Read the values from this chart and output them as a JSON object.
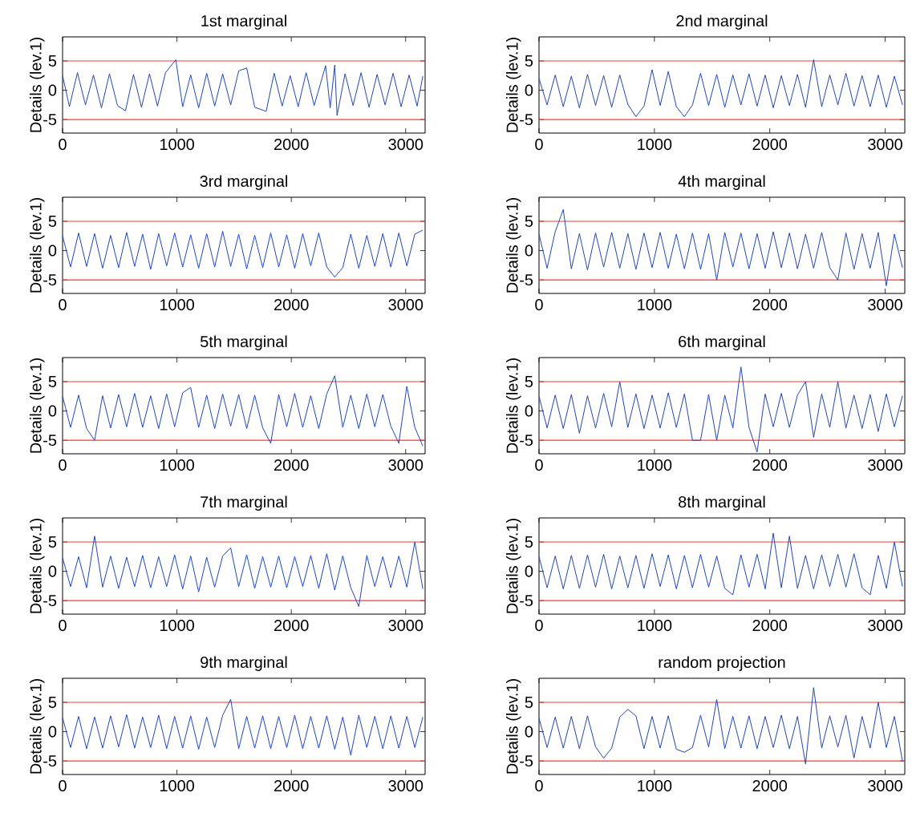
{
  "chart_data": [
    {
      "type": "line",
      "title": "1st marginal",
      "ylabel": "Details (lev.1)",
      "xlim": [
        0,
        3170
      ],
      "ylim": [
        -7.3,
        9.1
      ],
      "xticks": [
        0,
        1000,
        2000,
        3000
      ],
      "yticks": [
        -5,
        0,
        5
      ],
      "ref_lines": [
        {
          "axis": "y",
          "value": 5,
          "color": "#e8413a"
        },
        {
          "axis": "y",
          "value": -5,
          "color": "#e8413a"
        }
      ],
      "series": [
        {
          "color": "#1f45b0",
          "x": [
            0,
            60,
            130,
            200,
            270,
            340,
            410,
            480,
            550,
            620,
            690,
            760,
            830,
            900,
            990,
            1050,
            1120,
            1190,
            1260,
            1330,
            1400,
            1470,
            1540,
            1610,
            1680,
            1780,
            1850,
            1920,
            1990,
            2060,
            2130,
            2200,
            2300,
            2340,
            2380,
            2400,
            2470,
            2540,
            2610,
            2680,
            2750,
            2820,
            2890,
            2960,
            3030,
            3100,
            3150
          ],
          "values": [
            2.5,
            -2.8,
            3.0,
            -2.5,
            2.6,
            -3.0,
            2.8,
            -2.6,
            -3.5,
            2.7,
            -2.9,
            2.8,
            -2.7,
            3.0,
            5.2,
            -2.8,
            2.6,
            -3.0,
            2.9,
            -2.7,
            2.8,
            -2.5,
            3.3,
            3.8,
            -2.9,
            -3.6,
            2.9,
            -2.7,
            2.5,
            -2.8,
            3.0,
            -2.6,
            4.2,
            -3.0,
            4.3,
            -4.3,
            2.8,
            -2.6,
            3.0,
            -2.9,
            2.7,
            -2.5,
            2.9,
            -2.8,
            2.6,
            -2.7,
            2.4
          ]
        }
      ]
    },
    {
      "type": "line",
      "title": "2nd marginal",
      "ylabel": "Details (lev.1)",
      "xlim": [
        0,
        3170
      ],
      "ylim": [
        -7.3,
        9.1
      ],
      "xticks": [
        0,
        1000,
        2000,
        3000
      ],
      "yticks": [
        -5,
        0,
        5
      ],
      "ref_lines": [
        {
          "axis": "y",
          "value": 5,
          "color": "#e8413a"
        },
        {
          "axis": "y",
          "value": -5,
          "color": "#e8413a"
        }
      ],
      "series": [
        {
          "color": "#1f45b0",
          "x": [
            0,
            70,
            140,
            210,
            280,
            350,
            420,
            490,
            560,
            630,
            700,
            770,
            840,
            910,
            980,
            1050,
            1120,
            1190,
            1260,
            1330,
            1400,
            1470,
            1540,
            1610,
            1680,
            1750,
            1820,
            1890,
            1960,
            2030,
            2100,
            2170,
            2240,
            2310,
            2380,
            2450,
            2520,
            2590,
            2660,
            2730,
            2800,
            2870,
            2940,
            3010,
            3080,
            3150
          ],
          "values": [
            2.0,
            -2.5,
            2.6,
            -2.8,
            2.4,
            -3.0,
            2.7,
            -2.6,
            2.5,
            -2.9,
            2.6,
            -2.4,
            -4.5,
            -2.7,
            3.5,
            -2.6,
            3.2,
            -2.8,
            -4.5,
            -2.5,
            2.9,
            -2.6,
            2.7,
            -2.9,
            2.6,
            -2.5,
            2.8,
            -2.7,
            2.6,
            -3.0,
            2.5,
            -2.6,
            2.7,
            -2.9,
            5.2,
            -2.8,
            2.6,
            -2.5,
            2.9,
            -2.7,
            2.5,
            -2.8,
            2.6,
            -2.9,
            2.4,
            -2.5
          ]
        }
      ]
    },
    {
      "type": "line",
      "title": "3rd marginal",
      "ylabel": "Details (lev.1)",
      "xlim": [
        0,
        3170
      ],
      "ylim": [
        -7.3,
        9.1
      ],
      "xticks": [
        0,
        1000,
        2000,
        3000
      ],
      "yticks": [
        -5,
        0,
        5
      ],
      "ref_lines": [
        {
          "axis": "y",
          "value": 5,
          "color": "#e8413a"
        },
        {
          "axis": "y",
          "value": -5,
          "color": "#e8413a"
        }
      ],
      "series": [
        {
          "color": "#1f45b0",
          "x": [
            0,
            70,
            140,
            210,
            280,
            350,
            420,
            490,
            560,
            630,
            700,
            770,
            840,
            910,
            980,
            1050,
            1120,
            1190,
            1260,
            1330,
            1400,
            1470,
            1540,
            1610,
            1680,
            1750,
            1820,
            1890,
            1960,
            2030,
            2100,
            2170,
            2240,
            2310,
            2380,
            2450,
            2520,
            2590,
            2660,
            2730,
            2800,
            2870,
            2940,
            3010,
            3080,
            3150
          ],
          "values": [
            2.5,
            -2.8,
            3.0,
            -2.7,
            2.9,
            -3.0,
            2.6,
            -2.9,
            3.1,
            -2.7,
            2.8,
            -3.2,
            2.9,
            -2.6,
            3.0,
            -2.8,
            2.7,
            -3.0,
            2.9,
            -2.8,
            3.3,
            -2.7,
            2.8,
            -3.1,
            2.6,
            -2.9,
            3.0,
            -2.8,
            2.7,
            -3.0,
            2.9,
            -2.6,
            3.0,
            -2.8,
            -4.5,
            -2.9,
            2.8,
            -3.0,
            2.6,
            -2.7,
            2.9,
            -2.8,
            3.0,
            -2.6,
            2.8,
            3.5
          ]
        }
      ]
    },
    {
      "type": "line",
      "title": "4th marginal",
      "ylabel": "Details (lev.1)",
      "xlim": [
        0,
        3170
      ],
      "ylim": [
        -7.3,
        9.1
      ],
      "xticks": [
        0,
        1000,
        2000,
        3000
      ],
      "yticks": [
        -5,
        0,
        5
      ],
      "ref_lines": [
        {
          "axis": "y",
          "value": 5,
          "color": "#e8413a"
        },
        {
          "axis": "y",
          "value": -5,
          "color": "#e8413a"
        }
      ],
      "series": [
        {
          "color": "#1f45b0",
          "x": [
            0,
            70,
            140,
            210,
            280,
            350,
            420,
            490,
            560,
            630,
            700,
            770,
            840,
            910,
            980,
            1050,
            1120,
            1190,
            1260,
            1330,
            1400,
            1470,
            1540,
            1610,
            1680,
            1750,
            1820,
            1890,
            1960,
            2030,
            2100,
            2170,
            2240,
            2310,
            2380,
            2450,
            2520,
            2590,
            2660,
            2730,
            2800,
            2870,
            2940,
            3010,
            3080,
            3150
          ],
          "values": [
            2.8,
            -3.0,
            3.2,
            7.0,
            -3.1,
            2.9,
            -3.3,
            3.0,
            -2.8,
            3.1,
            -3.0,
            2.9,
            -3.2,
            3.0,
            -2.9,
            3.1,
            -3.0,
            2.8,
            -3.1,
            3.0,
            -3.2,
            2.9,
            -5.0,
            3.1,
            -2.8,
            3.0,
            -3.1,
            2.9,
            -3.0,
            3.2,
            -2.9,
            3.0,
            -3.1,
            2.8,
            -3.0,
            3.1,
            -2.9,
            -5.0,
            3.0,
            -3.2,
            2.9,
            -3.0,
            3.1,
            -6.0,
            2.8,
            -2.9
          ]
        }
      ]
    },
    {
      "type": "line",
      "title": "5th marginal",
      "ylabel": "Details (lev.1)",
      "xlim": [
        0,
        3170
      ],
      "ylim": [
        -7.3,
        9.1
      ],
      "xticks": [
        0,
        1000,
        2000,
        3000
      ],
      "yticks": [
        -5,
        0,
        5
      ],
      "ref_lines": [
        {
          "axis": "y",
          "value": 5,
          "color": "#e8413a"
        },
        {
          "axis": "y",
          "value": -5,
          "color": "#e8413a"
        }
      ],
      "series": [
        {
          "color": "#1f45b0",
          "x": [
            0,
            70,
            140,
            210,
            280,
            350,
            420,
            490,
            560,
            630,
            700,
            770,
            840,
            910,
            980,
            1050,
            1120,
            1190,
            1260,
            1330,
            1400,
            1470,
            1540,
            1610,
            1680,
            1750,
            1820,
            1890,
            1960,
            2030,
            2100,
            2170,
            2240,
            2310,
            2380,
            2450,
            2520,
            2590,
            2660,
            2730,
            2800,
            2870,
            2940,
            3010,
            3080,
            3150
          ],
          "values": [
            2.5,
            -2.8,
            2.7,
            -3.0,
            -5.0,
            2.6,
            -2.9,
            2.8,
            -2.7,
            3.0,
            -2.8,
            2.6,
            -3.0,
            2.9,
            -2.7,
            3.1,
            4.0,
            -2.8,
            2.7,
            -3.0,
            2.9,
            -2.6,
            2.8,
            -3.0,
            2.7,
            -2.9,
            -5.5,
            2.8,
            -2.7,
            3.0,
            -2.8,
            2.6,
            -3.0,
            2.9,
            6.0,
            -2.8,
            2.7,
            -3.0,
            2.9,
            -2.7,
            2.8,
            -2.6,
            -5.5,
            4.2,
            -2.8,
            -6.0
          ]
        }
      ]
    },
    {
      "type": "line",
      "title": "6th marginal",
      "ylabel": "Details (lev.1)",
      "xlim": [
        0,
        3170
      ],
      "ylim": [
        -7.3,
        9.1
      ],
      "xticks": [
        0,
        1000,
        2000,
        3000
      ],
      "yticks": [
        -5,
        0,
        5
      ],
      "ref_lines": [
        {
          "axis": "y",
          "value": 5,
          "color": "#e8413a"
        },
        {
          "axis": "y",
          "value": -5,
          "color": "#e8413a"
        }
      ],
      "series": [
        {
          "color": "#1f45b0",
          "x": [
            0,
            70,
            140,
            210,
            280,
            350,
            420,
            490,
            560,
            630,
            700,
            770,
            840,
            910,
            980,
            1050,
            1120,
            1190,
            1260,
            1330,
            1400,
            1470,
            1540,
            1610,
            1680,
            1750,
            1820,
            1890,
            1960,
            2030,
            2100,
            2170,
            2240,
            2310,
            2380,
            2450,
            2520,
            2590,
            2660,
            2730,
            2800,
            2870,
            2940,
            3010,
            3080,
            3150
          ],
          "values": [
            2.5,
            -2.9,
            2.7,
            -3.0,
            2.8,
            -3.8,
            2.6,
            -2.9,
            3.0,
            -2.7,
            5.0,
            -2.8,
            2.9,
            -3.0,
            2.7,
            -2.9,
            3.1,
            -2.8,
            2.9,
            -5.0,
            -5.0,
            2.8,
            -5.0,
            2.7,
            -2.9,
            7.5,
            -2.8,
            -7.0,
            2.9,
            -2.7,
            3.0,
            -2.8,
            2.7,
            5.0,
            -4.5,
            2.9,
            -2.8,
            5.0,
            -2.9,
            2.7,
            -3.0,
            2.8,
            -3.5,
            2.9,
            -2.7,
            2.6
          ]
        }
      ]
    },
    {
      "type": "line",
      "title": "7th marginal",
      "ylabel": "Details (lev.1)",
      "xlim": [
        0,
        3170
      ],
      "ylim": [
        -7.3,
        9.1
      ],
      "xticks": [
        0,
        1000,
        2000,
        3000
      ],
      "yticks": [
        -5,
        0,
        5
      ],
      "ref_lines": [
        {
          "axis": "y",
          "value": 5,
          "color": "#e8413a"
        },
        {
          "axis": "y",
          "value": -5,
          "color": "#e8413a"
        }
      ],
      "series": [
        {
          "color": "#1f45b0",
          "x": [
            0,
            70,
            140,
            210,
            280,
            350,
            420,
            490,
            560,
            630,
            700,
            770,
            840,
            910,
            980,
            1050,
            1120,
            1190,
            1260,
            1330,
            1400,
            1470,
            1540,
            1610,
            1680,
            1750,
            1820,
            1890,
            1960,
            2030,
            2100,
            2170,
            2240,
            2310,
            2380,
            2450,
            2520,
            2590,
            2660,
            2730,
            2800,
            2870,
            2940,
            3010,
            3080,
            3150
          ],
          "values": [
            2.3,
            -2.6,
            2.5,
            -2.8,
            6.0,
            -2.7,
            2.6,
            -2.9,
            2.4,
            -2.6,
            2.7,
            -2.8,
            2.5,
            -2.6,
            2.8,
            -3.0,
            2.6,
            -3.5,
            2.4,
            -2.7,
            2.6,
            4.0,
            -2.6,
            2.8,
            -2.9,
            2.5,
            -2.7,
            2.6,
            -2.8,
            2.5,
            -2.6,
            2.7,
            -2.9,
            3.0,
            -3.2,
            2.6,
            -2.8,
            -6.0,
            2.7,
            -2.6,
            2.5,
            -2.8,
            2.6,
            -2.7,
            5.0,
            -3.0
          ]
        }
      ]
    },
    {
      "type": "line",
      "title": "8th marginal",
      "ylabel": "Details (lev.1)",
      "xlim": [
        0,
        3170
      ],
      "ylim": [
        -7.3,
        9.1
      ],
      "xticks": [
        0,
        1000,
        2000,
        3000
      ],
      "yticks": [
        -5,
        0,
        5
      ],
      "ref_lines": [
        {
          "axis": "y",
          "value": 5,
          "color": "#e8413a"
        },
        {
          "axis": "y",
          "value": -5,
          "color": "#e8413a"
        }
      ],
      "series": [
        {
          "color": "#1f45b0",
          "x": [
            0,
            70,
            140,
            210,
            280,
            350,
            420,
            490,
            560,
            630,
            700,
            770,
            840,
            910,
            980,
            1050,
            1120,
            1190,
            1260,
            1330,
            1400,
            1470,
            1540,
            1610,
            1680,
            1750,
            1820,
            1890,
            1960,
            2030,
            2100,
            2170,
            2240,
            2310,
            2380,
            2450,
            2520,
            2590,
            2660,
            2730,
            2800,
            2870,
            2940,
            3010,
            3080,
            3150
          ],
          "values": [
            2.5,
            -2.8,
            2.6,
            -3.0,
            2.7,
            -2.9,
            2.8,
            -2.7,
            2.9,
            -3.0,
            2.6,
            -2.8,
            2.7,
            -2.9,
            3.0,
            -2.6,
            2.8,
            -3.0,
            2.7,
            -2.8,
            2.9,
            -2.7,
            2.6,
            -2.9,
            -4.0,
            2.8,
            -2.7,
            2.9,
            -3.0,
            6.5,
            -2.8,
            6.0,
            -2.9,
            2.7,
            -3.0,
            2.8,
            -2.6,
            2.9,
            -2.7,
            3.0,
            -2.8,
            -4.0,
            2.7,
            -2.9,
            5.0,
            -2.6
          ]
        }
      ]
    },
    {
      "type": "line",
      "title": "9th marginal",
      "ylabel": "Details (lev.1)",
      "xlim": [
        0,
        3170
      ],
      "ylim": [
        -7.3,
        9.1
      ],
      "xticks": [
        0,
        1000,
        2000,
        3000
      ],
      "yticks": [
        -5,
        0,
        5
      ],
      "ref_lines": [
        {
          "axis": "y",
          "value": 5,
          "color": "#e8413a"
        },
        {
          "axis": "y",
          "value": -5,
          "color": "#e8413a"
        }
      ],
      "series": [
        {
          "color": "#1f45b0",
          "x": [
            0,
            70,
            140,
            210,
            280,
            350,
            420,
            490,
            560,
            630,
            700,
            770,
            840,
            910,
            980,
            1050,
            1120,
            1190,
            1260,
            1330,
            1400,
            1470,
            1540,
            1610,
            1680,
            1750,
            1820,
            1890,
            1960,
            2030,
            2100,
            2170,
            2240,
            2310,
            2380,
            2450,
            2520,
            2590,
            2660,
            2730,
            2800,
            2870,
            2940,
            3010,
            3080,
            3150
          ],
          "values": [
            2.4,
            -2.7,
            2.6,
            -2.9,
            2.5,
            -2.8,
            2.7,
            -2.6,
            2.9,
            -2.8,
            2.5,
            -2.7,
            2.8,
            -2.9,
            2.6,
            -2.8,
            2.7,
            -3.0,
            2.5,
            -2.7,
            2.8,
            5.5,
            -2.9,
            2.6,
            -2.8,
            2.7,
            -2.9,
            2.6,
            -2.7,
            2.8,
            -2.9,
            2.6,
            -2.8,
            2.7,
            -3.0,
            2.5,
            -4.0,
            2.8,
            -2.7,
            2.6,
            -2.9,
            2.7,
            -2.8,
            2.6,
            -2.7,
            2.5
          ]
        }
      ]
    },
    {
      "type": "line",
      "title": "random projection",
      "ylabel": "Details (lev.1)",
      "xlim": [
        0,
        3170
      ],
      "ylim": [
        -7.3,
        9.1
      ],
      "xticks": [
        0,
        1000,
        2000,
        3000
      ],
      "yticks": [
        -5,
        0,
        5
      ],
      "ref_lines": [
        {
          "axis": "y",
          "value": 5,
          "color": "#e8413a"
        },
        {
          "axis": "y",
          "value": -5,
          "color": "#e8413a"
        }
      ],
      "series": [
        {
          "color": "#1f45b0",
          "x": [
            0,
            70,
            140,
            210,
            280,
            350,
            420,
            490,
            560,
            630,
            700,
            770,
            840,
            910,
            980,
            1050,
            1120,
            1190,
            1260,
            1330,
            1400,
            1470,
            1540,
            1610,
            1680,
            1750,
            1820,
            1890,
            1960,
            2030,
            2100,
            2170,
            2240,
            2310,
            2380,
            2450,
            2520,
            2590,
            2660,
            2730,
            2800,
            2870,
            2940,
            3010,
            3080,
            3150
          ],
          "values": [
            2.3,
            -2.7,
            2.5,
            -2.8,
            2.6,
            -2.9,
            2.7,
            -2.6,
            -4.5,
            -2.8,
            2.5,
            3.8,
            2.7,
            -2.9,
            2.6,
            -2.8,
            2.7,
            -3.0,
            -3.5,
            -2.7,
            2.8,
            -2.6,
            5.5,
            -2.9,
            2.6,
            -2.8,
            2.7,
            -2.9,
            2.6,
            -2.7,
            2.8,
            -2.9,
            2.6,
            -5.5,
            7.5,
            -2.8,
            2.7,
            -2.6,
            2.8,
            -4.5,
            2.6,
            -2.8,
            5.0,
            -2.7,
            2.6,
            -5.0
          ]
        }
      ]
    }
  ]
}
